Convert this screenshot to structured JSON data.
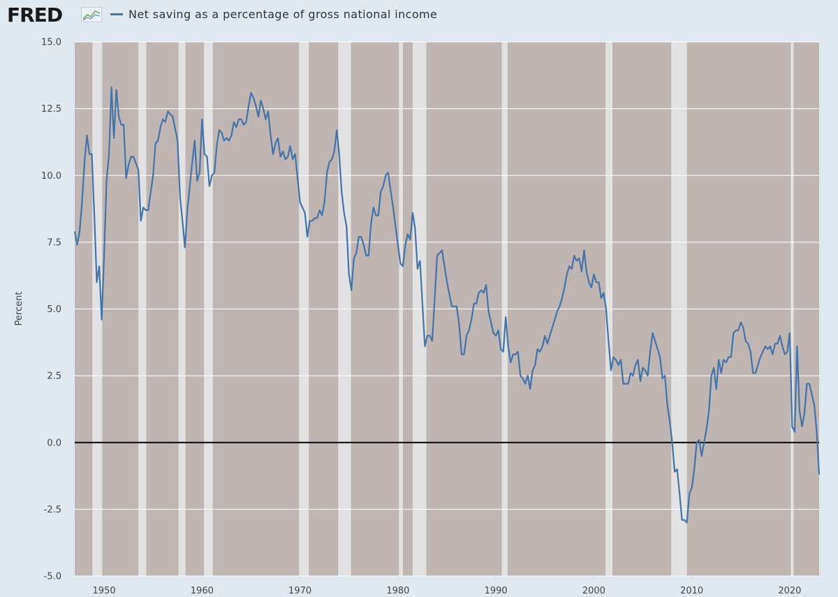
{
  "header": {
    "logo_text": "FRED",
    "logo_icon": "fred-line-graph-icon"
  },
  "colors": {
    "background": "#e1e9f0",
    "recession_band": "#bfb6b3",
    "expansion_gap": "#e2e2e2",
    "series": "#4572a7",
    "zero_line": "#000000",
    "grid": "#ffffff"
  },
  "chart_data": {
    "type": "line",
    "title": "",
    "xlabel": "",
    "ylabel": "Percent",
    "ylim": [
      -5,
      15
    ],
    "xlim": [
      1947.0,
      2023.0
    ],
    "yticks": [
      15.0,
      12.5,
      10.0,
      7.5,
      5.0,
      2.5,
      0.0,
      -2.5,
      -5.0
    ],
    "ytick_labels": [
      "15.0",
      "12.5",
      "10.0",
      "7.5",
      "5.0",
      "2.5",
      "0.0",
      "-2.5",
      "-5.0"
    ],
    "xticks": [
      1950,
      1960,
      1970,
      1980,
      1990,
      2000,
      2010,
      2020
    ],
    "xtick_labels": [
      "1950",
      "1960",
      "1970",
      "1980",
      "1990",
      "2000",
      "2010",
      "2020"
    ],
    "grid": true,
    "legend_position": "top-left",
    "shading": "background shaded, light gaps between shaded periods",
    "gaps": [
      [
        1948.8,
        1949.8
      ],
      [
        1953.5,
        1954.3
      ],
      [
        1957.6,
        1958.3
      ],
      [
        1960.2,
        1961.1
      ],
      [
        1969.9,
        1970.9
      ],
      [
        1973.9,
        1975.2
      ],
      [
        1980.1,
        1980.5
      ],
      [
        1981.5,
        1982.9
      ],
      [
        1990.6,
        1991.2
      ],
      [
        2001.2,
        2001.9
      ],
      [
        2007.9,
        2009.5
      ],
      [
        2020.1,
        2020.4
      ]
    ],
    "series": [
      {
        "name": "Net saving as a percentage of gross national income",
        "x": [
          1947.0,
          1947.25,
          1947.5,
          1947.75,
          1948.0,
          1948.25,
          1948.5,
          1948.75,
          1949.0,
          1949.25,
          1949.5,
          1949.75,
          1950.0,
          1950.25,
          1950.5,
          1950.75,
          1951.0,
          1951.25,
          1951.5,
          1951.75,
          1952.0,
          1952.25,
          1952.5,
          1952.75,
          1953.0,
          1953.5,
          1953.75,
          1954.0,
          1954.25,
          1954.5,
          1955.0,
          1955.25,
          1955.5,
          1955.75,
          1956.0,
          1956.25,
          1956.5,
          1957.0,
          1957.5,
          1957.75,
          1958.0,
          1958.25,
          1958.5,
          1959.0,
          1959.25,
          1959.5,
          1959.75,
          1960.0,
          1960.25,
          1960.5,
          1960.75,
          1961.0,
          1961.25,
          1961.5,
          1961.75,
          1962.0,
          1962.25,
          1962.5,
          1962.75,
          1963.0,
          1963.25,
          1963.5,
          1963.75,
          1964.0,
          1964.25,
          1964.5,
          1964.75,
          1965.0,
          1965.25,
          1965.5,
          1965.75,
          1966.0,
          1966.25,
          1966.5,
          1966.75,
          1967.0,
          1967.25,
          1967.5,
          1967.75,
          1968.0,
          1968.25,
          1968.5,
          1968.75,
          1969.0,
          1969.25,
          1969.5,
          1970.0,
          1970.5,
          1970.75,
          1971.0,
          1971.25,
          1971.5,
          1971.75,
          1972.0,
          1972.25,
          1972.5,
          1972.75,
          1973.0,
          1973.25,
          1973.5,
          1973.75,
          1974.0,
          1974.25,
          1974.5,
          1974.75,
          1975.0,
          1975.25,
          1975.5,
          1975.75,
          1976.0,
          1976.25,
          1976.5,
          1976.75,
          1977.0,
          1977.25,
          1977.5,
          1977.75,
          1978.0,
          1978.25,
          1978.5,
          1978.75,
          1979.0,
          1979.5,
          1980.0,
          1980.25,
          1980.5,
          1980.75,
          1981.0,
          1981.25,
          1981.5,
          1981.75,
          1982.0,
          1982.25,
          1982.5,
          1982.75,
          1983.0,
          1983.25,
          1983.5,
          1984.0,
          1984.25,
          1984.5,
          1985.0,
          1985.5,
          1986.0,
          1986.25,
          1986.5,
          1986.75,
          1987.0,
          1987.25,
          1987.5,
          1987.75,
          1988.0,
          1988.25,
          1988.5,
          1988.75,
          1989.0,
          1989.25,
          1989.5,
          1989.75,
          1990.0,
          1990.25,
          1990.5,
          1990.75,
          1991.0,
          1991.25,
          1991.5,
          1991.75,
          1992.0,
          1992.25,
          1992.5,
          1992.75,
          1993.0,
          1993.25,
          1993.5,
          1993.75,
          1994.0,
          1994.25,
          1994.5,
          1994.75,
          1995.0,
          1995.25,
          1995.5,
          1995.75,
          1996.0,
          1996.25,
          1996.5,
          1996.75,
          1997.0,
          1997.25,
          1997.5,
          1997.75,
          1998.0,
          1998.25,
          1998.5,
          1998.75,
          1999.0,
          1999.25,
          1999.5,
          1999.75,
          2000.0,
          2000.25,
          2000.5,
          2000.75,
          2001.0,
          2001.25,
          2001.5,
          2001.75,
          2002.0,
          2002.25,
          2002.5,
          2002.75,
          2003.0,
          2003.25,
          2003.5,
          2003.75,
          2004.0,
          2004.25,
          2004.5,
          2004.75,
          2005.0,
          2005.25,
          2005.5,
          2005.75,
          2006.0,
          2006.25,
          2006.5,
          2006.75,
          2007.0,
          2007.25,
          2007.5,
          2007.75,
          2008.0,
          2008.25,
          2008.5,
          2008.75,
          2009.0,
          2009.25,
          2009.5,
          2009.75,
          2010.0,
          2010.25,
          2010.5,
          2010.75,
          2011.0,
          2011.25,
          2011.5,
          2011.75,
          2012.0,
          2012.25,
          2012.5,
          2012.75,
          2013.0,
          2013.25,
          2013.5,
          2013.75,
          2014.0,
          2014.25,
          2014.5,
          2014.75,
          2015.0,
          2015.25,
          2015.5,
          2015.75,
          2016.0,
          2016.25,
          2016.5,
          2016.75,
          2017.0,
          2017.25,
          2017.5,
          2017.75,
          2018.0,
          2018.25,
          2018.5,
          2018.75,
          2019.0,
          2019.25,
          2019.5,
          2019.75,
          2020.0,
          2020.25,
          2020.5,
          2020.75,
          2021.0,
          2021.25,
          2021.5,
          2021.75,
          2022.0,
          2022.25,
          2022.5,
          2022.75,
          2023.0
        ],
        "y": [
          7.9,
          7.4,
          7.9,
          9.0,
          10.5,
          11.5,
          10.8,
          10.8,
          8.5,
          6.0,
          6.6,
          4.6,
          7.0,
          9.8,
          10.8,
          13.3,
          11.4,
          13.2,
          12.2,
          11.9,
          11.9,
          9.9,
          10.4,
          10.7,
          10.7,
          10.2,
          8.3,
          8.8,
          8.7,
          8.7,
          10.0,
          11.2,
          11.3,
          11.8,
          12.1,
          12.0,
          12.4,
          12.2,
          11.3,
          9.2,
          8.3,
          7.3,
          8.7,
          10.5,
          11.3,
          9.8,
          10.1,
          12.1,
          10.8,
          10.7,
          9.6,
          10.0,
          10.1,
          11.1,
          11.7,
          11.6,
          11.3,
          11.4,
          11.3,
          11.5,
          12.0,
          11.8,
          12.1,
          12.1,
          11.9,
          12.0,
          12.6,
          13.1,
          12.9,
          12.6,
          12.2,
          12.8,
          12.5,
          12.1,
          12.4,
          11.5,
          10.8,
          11.2,
          11.4,
          10.7,
          10.9,
          10.6,
          10.7,
          11.1,
          10.6,
          10.8,
          9.0,
          8.6,
          7.7,
          8.3,
          8.3,
          8.4,
          8.4,
          8.7,
          8.5,
          9.0,
          10.1,
          10.5,
          10.6,
          10.9,
          11.7,
          10.8,
          9.4,
          8.6,
          8.1,
          6.3,
          5.7,
          6.9,
          7.1,
          7.7,
          7.7,
          7.4,
          7.0,
          7.0,
          8.2,
          8.8,
          8.5,
          8.5,
          9.4,
          9.6,
          10.0,
          10.1,
          8.8,
          7.4,
          6.7,
          6.6,
          7.4,
          7.8,
          7.6,
          8.6,
          8.0,
          6.5,
          6.8,
          5.2,
          3.6,
          4.0,
          4.0,
          3.8,
          7.0,
          7.1,
          7.2,
          6.0,
          5.1,
          5.1,
          4.4,
          3.3,
          3.3,
          4.0,
          4.2,
          4.6,
          5.2,
          5.2,
          5.6,
          5.7,
          5.6,
          5.9,
          4.9,
          4.5,
          4.1,
          4.0,
          4.2,
          3.5,
          3.4,
          4.7,
          3.6,
          3.0,
          3.3,
          3.3,
          3.4,
          2.5,
          2.4,
          2.2,
          2.5,
          2.0,
          2.7,
          2.9,
          3.5,
          3.4,
          3.6,
          4.0,
          3.7,
          4.0,
          4.3,
          4.6,
          4.9,
          5.1,
          5.4,
          5.8,
          6.3,
          6.6,
          6.5,
          7.0,
          6.8,
          6.9,
          6.4,
          7.2,
          6.4,
          6.0,
          5.8,
          6.3,
          6.0,
          6.0,
          5.4,
          5.6,
          5.0,
          3.8,
          2.7,
          3.2,
          3.1,
          2.9,
          3.1,
          2.2,
          2.2,
          2.2,
          2.6,
          2.5,
          2.9,
          3.1,
          2.3,
          2.8,
          2.7,
          2.5,
          3.4,
          4.1,
          3.8,
          3.5,
          3.2,
          2.4,
          2.5,
          1.4,
          0.8,
          0.0,
          -1.1,
          -1.0,
          -1.9,
          -2.9,
          -2.9,
          -3.0,
          -1.9,
          -1.7,
          -1.0,
          0.0,
          0.1,
          -0.5,
          0.0,
          0.5,
          1.2,
          2.5,
          2.8,
          2.0,
          3.1,
          2.6,
          3.1,
          3.0,
          3.2,
          3.2,
          4.1,
          4.2,
          4.2,
          4.5,
          4.3,
          3.8,
          3.7,
          3.4,
          2.6,
          2.6,
          2.9,
          3.2,
          3.4,
          3.6,
          3.5,
          3.6,
          3.3,
          3.7,
          3.7,
          4.0,
          3.6,
          3.3,
          3.4,
          4.1,
          0.6,
          0.4,
          3.6,
          1.2,
          0.6,
          1.1,
          2.2,
          2.2,
          1.8,
          1.4,
          0.4,
          -1.2
        ]
      }
    ]
  }
}
